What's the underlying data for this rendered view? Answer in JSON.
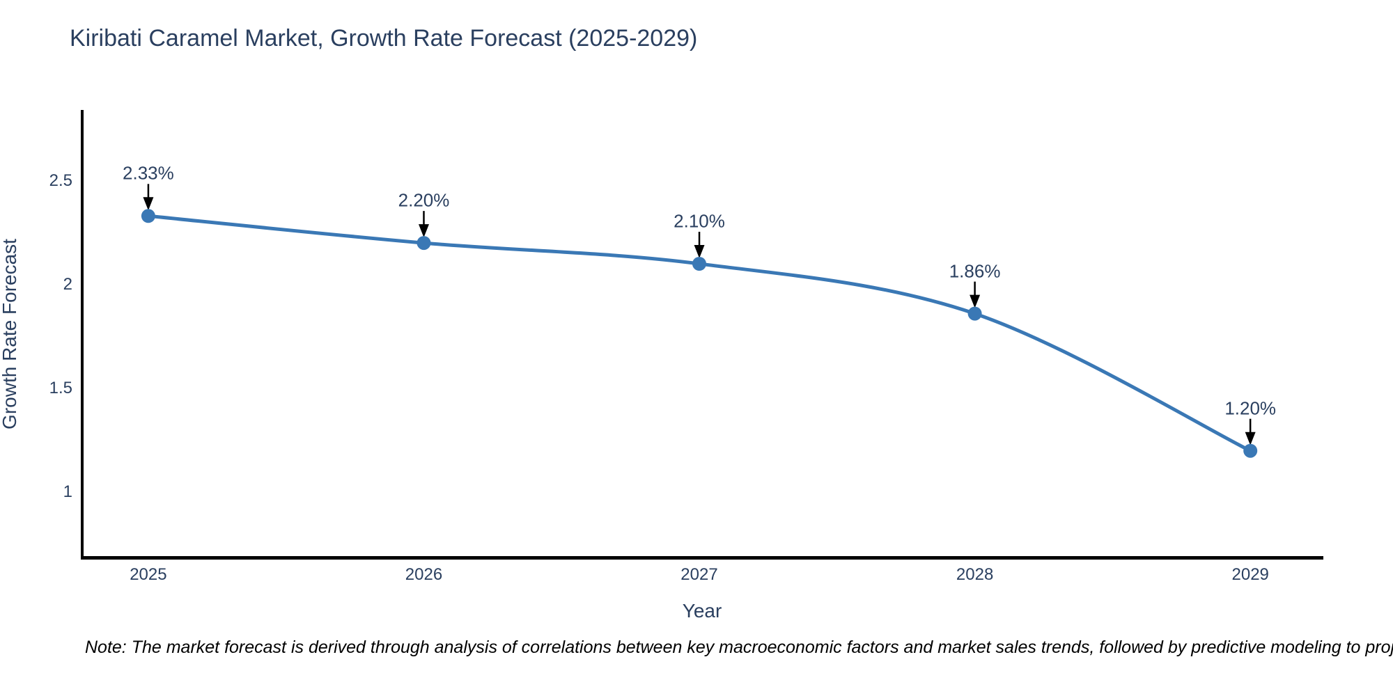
{
  "title": "Kiribati Caramel Market, Growth Rate Forecast (2025-2029)",
  "note": "Note: The market forecast is derived through analysis of correlations between key macroeconomic factors and market sales trends, followed by predictive modeling to project future sales",
  "chart_data": {
    "type": "line",
    "title": "Kiribati Caramel Market, Growth Rate Forecast (2025-2029)",
    "xlabel": "Year",
    "ylabel": "Growth Rate Forecast",
    "x": [
      2025,
      2026,
      2027,
      2028,
      2029
    ],
    "values": [
      2.33,
      2.2,
      2.1,
      1.86,
      1.2
    ],
    "point_labels": [
      "2.33%",
      "2.20%",
      "2.10%",
      "1.86%",
      "1.20%"
    ],
    "yticks": [
      2.5,
      2,
      1.5,
      1
    ],
    "xticks": [
      2025,
      2026,
      2027,
      2028,
      2029
    ],
    "ylim": [
      0.69,
      2.84
    ],
    "xlim": [
      2024.76,
      2029.26
    ],
    "line_shape": "spline",
    "grid": false,
    "legend": "none",
    "colors": {
      "line": "#3a78b5",
      "marker": "#3a78b5",
      "arrow": "#000000",
      "text": "#2a3f5f",
      "spine": "#000000"
    }
  }
}
